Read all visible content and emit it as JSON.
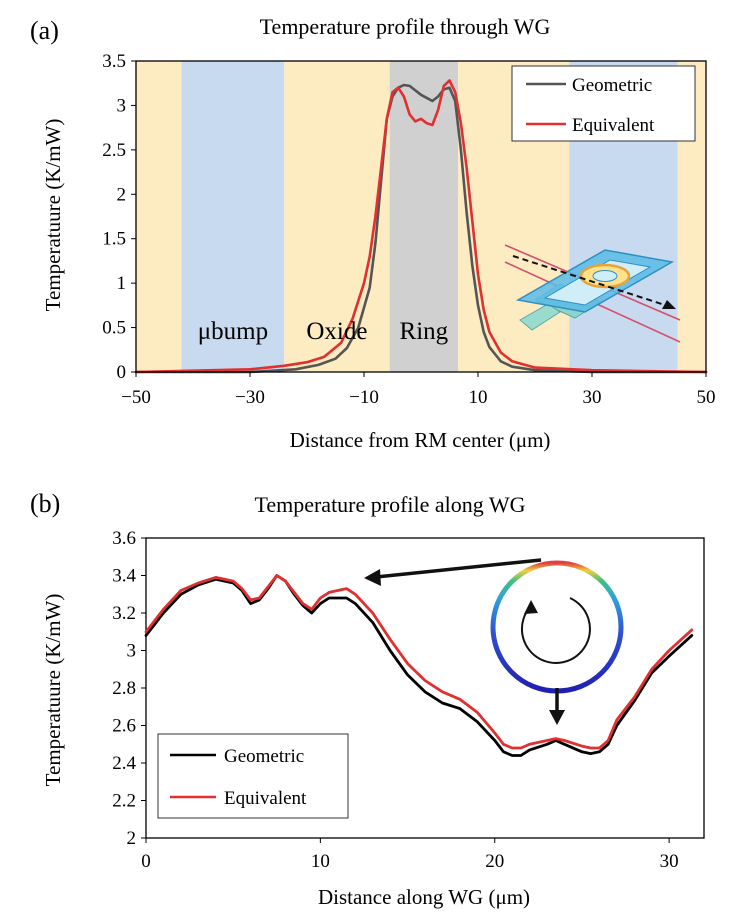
{
  "colors": {
    "geometric_a": "#555555",
    "geometric_b": "#000000",
    "equivalent": "#e03030",
    "oxide_band": "#fdebc2",
    "bump_band": "#c7daef",
    "ring_band": "#d0d0d0"
  },
  "chart_data": [
    {
      "panel": "(a)",
      "type": "line",
      "title": "Temperature profile through WG",
      "xlabel": "Distance from RM center (μm)",
      "ylabel": "Temperatuure (K/mW)",
      "xlim": [
        -50,
        50
      ],
      "ylim": [
        0,
        3.5
      ],
      "xticks": [
        "−50",
        "−30",
        "−10",
        "10",
        "30",
        "50"
      ],
      "yticks": [
        "0",
        "0.5",
        "1",
        "1.5",
        "2",
        "2.5",
        "3",
        "3.5"
      ],
      "regions": [
        {
          "label": "",
          "kind": "oxide",
          "x0": -50,
          "x1": -42
        },
        {
          "label": "μbump",
          "kind": "bump",
          "x0": -42,
          "x1": -24
        },
        {
          "label": "Oxide",
          "kind": "oxide",
          "x0": -24,
          "x1": -5.5
        },
        {
          "label": "Ring",
          "kind": "ring",
          "x0": -5.5,
          "x1": 6.5
        },
        {
          "label": "",
          "kind": "oxide",
          "x0": 6.5,
          "x1": 26
        },
        {
          "label": "",
          "kind": "bump",
          "x0": 26,
          "x1": 45
        },
        {
          "label": "",
          "kind": "oxide",
          "x0": 45,
          "x1": 50
        }
      ],
      "legend": [
        "Geometric",
        "Equivalent"
      ],
      "series": [
        {
          "name": "Geometric",
          "x": [
            -50,
            -30,
            -22,
            -18,
            -15,
            -13,
            -11,
            -9,
            -8,
            -7,
            -6,
            -5,
            -4,
            -3,
            -2,
            0,
            2,
            3,
            4,
            5,
            6,
            7,
            8,
            9,
            10,
            11,
            12,
            14,
            16,
            20,
            30,
            50
          ],
          "y": [
            0.0,
            0.0,
            0.03,
            0.08,
            0.15,
            0.27,
            0.5,
            0.95,
            1.45,
            2.15,
            2.85,
            3.1,
            3.2,
            3.23,
            3.22,
            3.12,
            3.05,
            3.1,
            3.18,
            3.2,
            3.05,
            2.5,
            1.8,
            1.2,
            0.75,
            0.45,
            0.28,
            0.12,
            0.06,
            0.02,
            0.0,
            0.0
          ]
        },
        {
          "name": "Equivalent",
          "x": [
            -50,
            -30,
            -24,
            -20,
            -17,
            -14,
            -12,
            -10,
            -9,
            -8,
            -7,
            -6,
            -5,
            -4,
            -3,
            -2,
            -1,
            0,
            1,
            2,
            3,
            4,
            5,
            6,
            7,
            8,
            9,
            10,
            11,
            12,
            14,
            16,
            20,
            30,
            50
          ],
          "y": [
            0.0,
            0.03,
            0.07,
            0.11,
            0.17,
            0.33,
            0.6,
            1.0,
            1.3,
            1.75,
            2.3,
            2.85,
            3.15,
            3.2,
            3.1,
            2.9,
            2.82,
            2.85,
            2.8,
            2.78,
            2.95,
            3.22,
            3.28,
            3.15,
            2.8,
            2.3,
            1.7,
            1.1,
            0.7,
            0.45,
            0.22,
            0.12,
            0.05,
            0.02,
            0.0
          ]
        }
      ]
    },
    {
      "panel": "(b)",
      "type": "line",
      "title": "Temperature profile along WG",
      "xlabel": "Distance along WG (μm)",
      "ylabel": "Temperatuure (K/mW)",
      "xlim": [
        0,
        32
      ],
      "ylim": [
        2,
        3.6
      ],
      "xticks": [
        "0",
        "10",
        "20",
        "30"
      ],
      "yticks": [
        "2",
        "2.2",
        "2.4",
        "2.6",
        "2.8",
        "3",
        "3.2",
        "3.4",
        "3.6"
      ],
      "legend": [
        "Geometric",
        "Equivalent"
      ],
      "series": [
        {
          "name": "Geometric",
          "x": [
            0,
            1,
            2,
            3,
            4,
            5,
            5.5,
            6,
            6.5,
            7,
            7.5,
            8,
            8.5,
            9,
            9.5,
            10,
            10.5,
            11,
            11.5,
            12,
            13,
            14,
            15,
            16,
            17,
            18,
            19,
            20,
            20.5,
            21,
            21.5,
            22,
            23,
            23.5,
            24,
            25,
            25.5,
            26,
            26.5,
            27,
            28,
            29,
            30,
            31.3
          ],
          "y": [
            3.08,
            3.2,
            3.3,
            3.35,
            3.38,
            3.36,
            3.32,
            3.25,
            3.27,
            3.33,
            3.4,
            3.37,
            3.3,
            3.24,
            3.2,
            3.25,
            3.28,
            3.28,
            3.28,
            3.25,
            3.15,
            3.0,
            2.87,
            2.78,
            2.72,
            2.69,
            2.62,
            2.52,
            2.46,
            2.44,
            2.44,
            2.47,
            2.5,
            2.52,
            2.5,
            2.46,
            2.45,
            2.46,
            2.5,
            2.6,
            2.73,
            2.88,
            2.97,
            3.08
          ]
        },
        {
          "name": "Equivalent",
          "x": [
            0,
            1,
            2,
            3,
            4,
            5,
            5.5,
            6,
            6.5,
            7,
            7.5,
            8,
            8.5,
            9,
            9.5,
            10,
            10.5,
            11,
            11.5,
            12,
            13,
            14,
            15,
            16,
            17,
            18,
            19,
            20,
            20.5,
            21,
            21.5,
            22,
            23,
            23.5,
            24,
            25,
            25.5,
            26,
            26.5,
            27,
            28,
            29,
            30,
            31.3
          ],
          "y": [
            3.1,
            3.22,
            3.32,
            3.36,
            3.39,
            3.37,
            3.33,
            3.27,
            3.28,
            3.34,
            3.4,
            3.37,
            3.31,
            3.25,
            3.22,
            3.28,
            3.31,
            3.32,
            3.33,
            3.3,
            3.2,
            3.06,
            2.93,
            2.84,
            2.78,
            2.74,
            2.67,
            2.56,
            2.5,
            2.48,
            2.48,
            2.5,
            2.52,
            2.53,
            2.52,
            2.49,
            2.48,
            2.48,
            2.52,
            2.63,
            2.75,
            2.9,
            3.0,
            3.11
          ]
        }
      ]
    }
  ]
}
